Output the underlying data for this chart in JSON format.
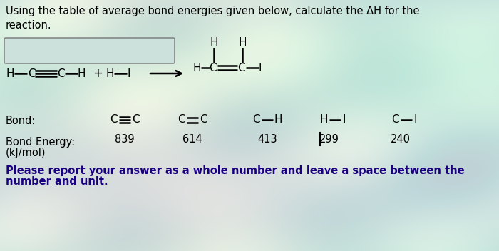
{
  "bg_color": "#cce0dc",
  "text_color": "#000000",
  "title_line1": "Using the table of average bond energies given below, calculate the ΔH for the",
  "title_line2": "reaction.",
  "bond_label": "Bond:",
  "bond_energy_label": "Bond Energy:",
  "kj_mol_label": "(kJ/mol)",
  "energies": [
    "839",
    "614",
    "413",
    "299",
    "240"
  ],
  "please_line1": "Please report your answer as a whole number and leave a space between the",
  "please_line2": "number and unit.",
  "font_size_title": 10.5,
  "font_size_body": 10.5,
  "font_size_chem": 11.0,
  "please_color": "#1a0080"
}
